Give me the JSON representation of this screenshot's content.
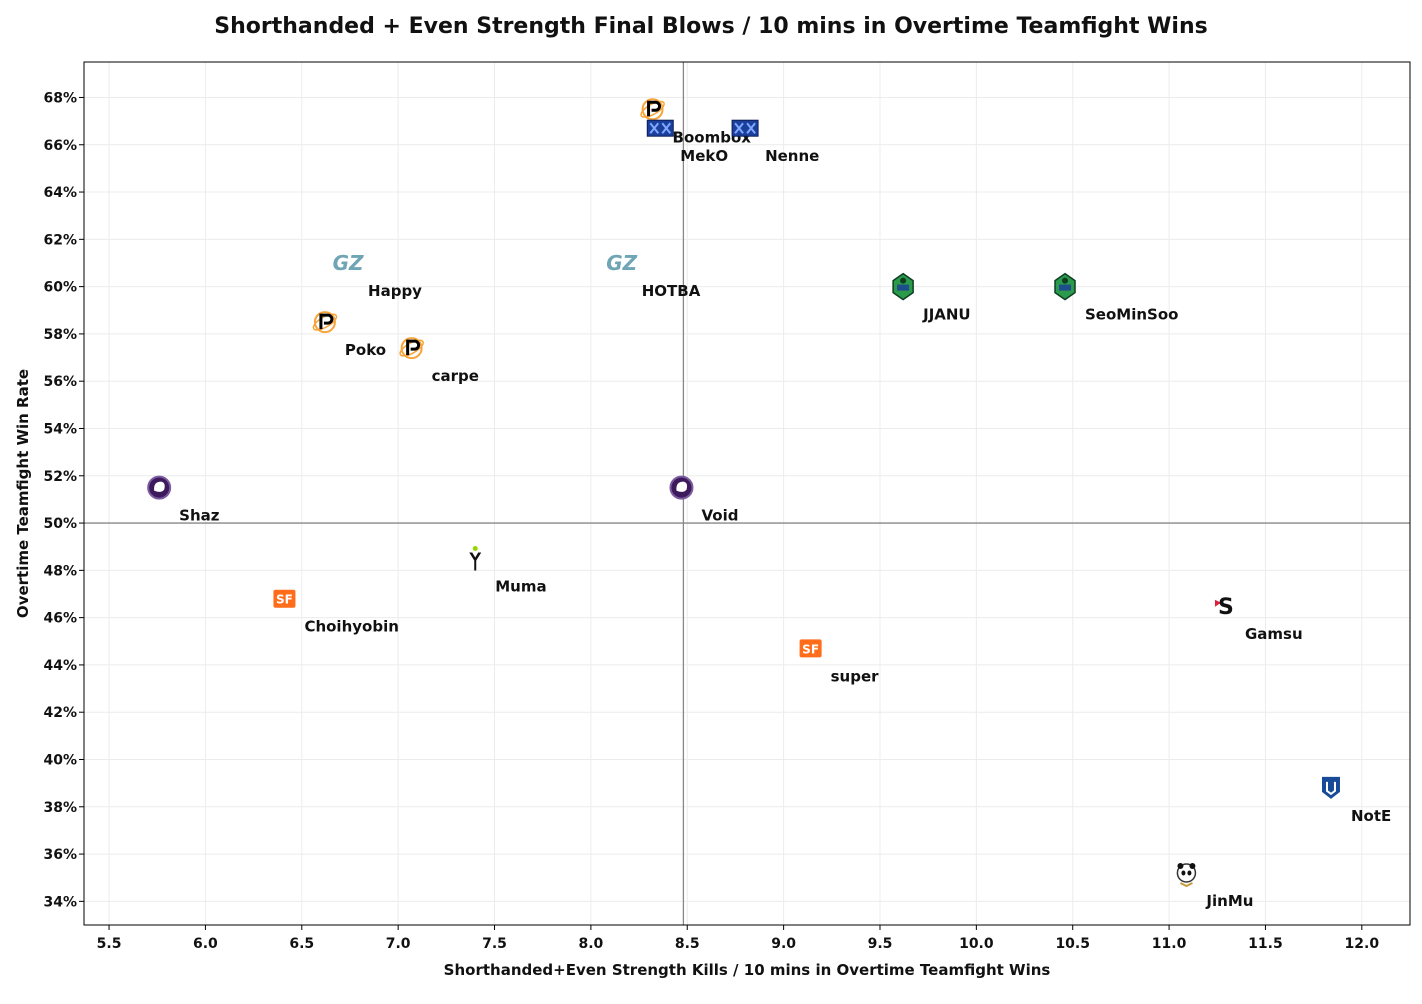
{
  "chart_data": {
    "type": "scatter",
    "title": "Shorthanded + Even Strength Final Blows / 10 mins in Overtime Teamfight Wins",
    "xlabel": "Shorthanded+Even Strength Kills / 10 mins in Overtime Teamfight Wins",
    "ylabel": "Overtime Teamfight Win Rate",
    "xlim": [
      5.37,
      12.25
    ],
    "ylim": [
      33.0,
      69.5
    ],
    "x_ticks": [
      "5.5",
      "6.0",
      "6.5",
      "7.0",
      "7.5",
      "8.0",
      "8.5",
      "9.0",
      "9.5",
      "10.0",
      "10.5",
      "11.0",
      "11.5",
      "12.0"
    ],
    "y_ticks": [
      "34%",
      "36%",
      "38%",
      "40%",
      "42%",
      "44%",
      "46%",
      "48%",
      "50%",
      "52%",
      "54%",
      "56%",
      "58%",
      "60%",
      "62%",
      "64%",
      "66%",
      "68%"
    ],
    "grid": true,
    "reference_lines": {
      "x": 8.48,
      "y": 50
    },
    "points": [
      {
        "label": "Boombox",
        "x": 8.32,
        "y": 67.5,
        "icon": "fusion-logo-icon"
      },
      {
        "label": "MekO",
        "x": 8.36,
        "y": 66.7,
        "icon": "excelsior-logo-icon"
      },
      {
        "label": "Nenne",
        "x": 8.8,
        "y": 66.7,
        "icon": "excelsior-logo-icon"
      },
      {
        "label": "Happy",
        "x": 6.74,
        "y": 61.0,
        "icon": "charge-logo-icon"
      },
      {
        "label": "HOTBA",
        "x": 8.16,
        "y": 61.0,
        "icon": "charge-logo-icon"
      },
      {
        "label": "JJANU",
        "x": 9.62,
        "y": 60.0,
        "icon": "valiant-logo-icon"
      },
      {
        "label": "SeoMinSoo",
        "x": 10.46,
        "y": 60.0,
        "icon": "valiant-logo-icon"
      },
      {
        "label": "Poko",
        "x": 6.62,
        "y": 58.5,
        "icon": "fusion-logo-icon"
      },
      {
        "label": "carpe",
        "x": 7.07,
        "y": 57.4,
        "icon": "fusion-logo-icon"
      },
      {
        "label": "Shaz",
        "x": 5.76,
        "y": 51.5,
        "icon": "gladiators-logo-icon"
      },
      {
        "label": "Void",
        "x": 8.47,
        "y": 51.5,
        "icon": "gladiators-logo-icon"
      },
      {
        "label": "Muma",
        "x": 7.4,
        "y": 48.5,
        "icon": "outlaws-logo-icon"
      },
      {
        "label": "Choihyobin",
        "x": 6.41,
        "y": 46.8,
        "icon": "shock-logo-icon"
      },
      {
        "label": "Gamsu",
        "x": 11.29,
        "y": 46.5,
        "icon": "spitfire-logo-icon"
      },
      {
        "label": "super",
        "x": 9.14,
        "y": 44.7,
        "icon": "shock-logo-icon"
      },
      {
        "label": "NotE",
        "x": 11.84,
        "y": 38.8,
        "icon": "uprising-logo-icon"
      },
      {
        "label": "JinMu",
        "x": 11.09,
        "y": 35.2,
        "icon": "dragons-logo-icon"
      }
    ]
  },
  "colors": {
    "fusion-orange": "#f7a43a",
    "excelsior-blue": "#1c3f9d",
    "charge-teal": "#6fa5b4",
    "valiant-green": "#2b9a4a",
    "gladiators-purple": "#3c1a5b",
    "outlaws-green": "#97d700",
    "shock-orange": "#ff6c1a",
    "spitfire-red": "#e11f3b",
    "uprising-blue": "#174b97",
    "grid": "#ececec",
    "refline": "#888888"
  }
}
